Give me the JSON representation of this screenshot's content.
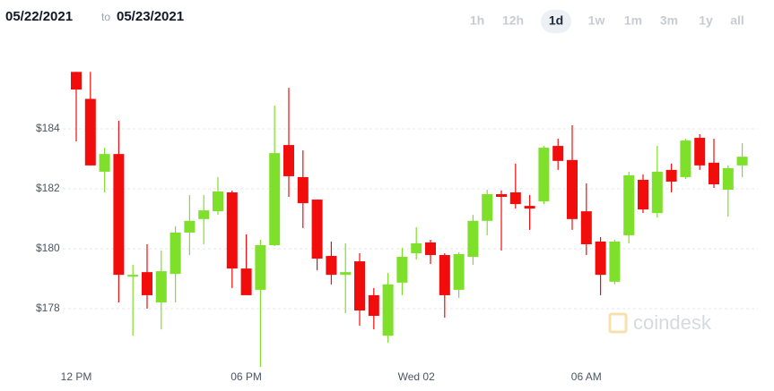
{
  "ui": {
    "date_from": "05/22/2021",
    "date_sep": "to",
    "date_to": "05/23/2021",
    "ranges": [
      "1h",
      "12h",
      "1d",
      "1w",
      "1m",
      "3m",
      "1y",
      "all"
    ],
    "active_range_index": 2,
    "watermark": "coindesk"
  },
  "chart_data": {
    "type": "candlestick",
    "categories": [
      "12 PM",
      null,
      null,
      null,
      null,
      null,
      null,
      null,
      null,
      null,
      null,
      null,
      "06 PM",
      null,
      null,
      null,
      null,
      null,
      null,
      null,
      null,
      null,
      null,
      null,
      "Wed 02",
      null,
      null,
      null,
      null,
      null,
      null,
      null,
      null,
      null,
      null,
      null,
      "06 AM",
      null,
      null,
      null,
      null,
      null,
      null,
      null,
      null,
      null,
      null,
      null
    ],
    "open": [
      185.9,
      185.0,
      182.57,
      183.16,
      179.07,
      179.22,
      178.21,
      179.16,
      180.54,
      180.99,
      181.25,
      181.88,
      179.34,
      178.63,
      180.12,
      183.46,
      182.39,
      181.64,
      179.76,
      179.13,
      179.58,
      178.45,
      177.1,
      178.87,
      179.85,
      180.21,
      179.79,
      178.63,
      179.73,
      180.93,
      181.82,
      181.88,
      181.43,
      181.58,
      183.43,
      182.96,
      181.25,
      180.24,
      178.9,
      180.45,
      182.3,
      181.19,
      182.63,
      182.39,
      183.7,
      182.87,
      181.97,
      182.78
    ],
    "high": [
      185.9,
      185.9,
      183.37,
      184.27,
      179.46,
      180.15,
      179.94,
      180.75,
      181.79,
      181.79,
      182.39,
      181.94,
      180.48,
      180.3,
      184.78,
      185.37,
      183.28,
      181.64,
      180.24,
      180.18,
      179.85,
      178.69,
      179.19,
      180.03,
      180.72,
      180.3,
      179.85,
      179.88,
      181.13,
      181.97,
      181.94,
      182.84,
      181.79,
      183.43,
      183.67,
      184.12,
      182.18,
      180.39,
      180.3,
      182.57,
      182.48,
      183.43,
      182.84,
      183.67,
      183.82,
      183.67,
      182.78,
      183.52
    ],
    "low": [
      183.58,
      182.78,
      181.88,
      178.21,
      177.1,
      178.0,
      177.31,
      178.21,
      179.79,
      180.15,
      181.13,
      178.69,
      178.45,
      176.06,
      180.09,
      181.73,
      180.69,
      179.28,
      178.81,
      177.85,
      177.43,
      177.31,
      176.87,
      178.45,
      179.64,
      179.49,
      177.7,
      178.36,
      179.46,
      180.45,
      179.94,
      181.34,
      180.63,
      181.49,
      182.63,
      180.63,
      179.79,
      178.45,
      178.81,
      180.18,
      181.19,
      181.04,
      181.88,
      182.33,
      182.63,
      182.03,
      181.07,
      182.39
    ],
    "close": [
      185.31,
      182.78,
      183.16,
      179.13,
      179.13,
      178.45,
      179.25,
      180.54,
      180.93,
      181.28,
      181.91,
      179.34,
      178.45,
      180.12,
      183.19,
      182.42,
      181.52,
      179.67,
      179.13,
      179.22,
      177.94,
      177.76,
      178.81,
      179.73,
      180.18,
      179.79,
      178.45,
      179.82,
      180.93,
      181.82,
      181.73,
      181.49,
      181.34,
      183.37,
      182.93,
      180.99,
      180.15,
      179.13,
      180.24,
      182.45,
      181.31,
      182.57,
      182.24,
      183.61,
      182.78,
      182.15,
      182.69,
      183.07
    ],
    "up_color": "#7ee02a",
    "down_color": "#f20d0d",
    "ylim": [
      176.0,
      186.1
    ],
    "yticks": [
      {
        "value": 178,
        "label": "$178"
      },
      {
        "value": 180,
        "label": "$180"
      },
      {
        "value": 182,
        "label": "$182"
      },
      {
        "value": 184,
        "label": "$184"
      }
    ],
    "grid": true
  }
}
